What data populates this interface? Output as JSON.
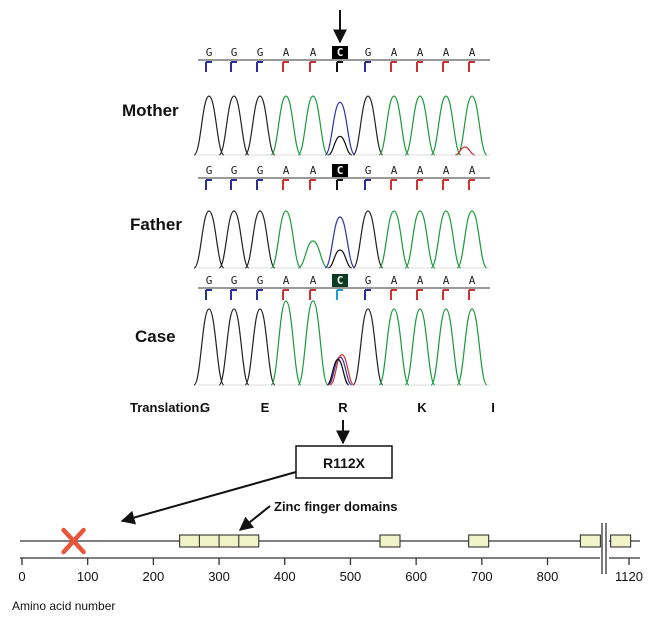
{
  "panels": [
    {
      "label": "Mother",
      "call": "C",
      "variant": "normal"
    },
    {
      "label": "Father",
      "call": "C",
      "variant": "normal"
    },
    {
      "label": "Case",
      "call": "C",
      "variant": "heterozygous"
    }
  ],
  "bases": [
    "G",
    "G",
    "G",
    "A",
    "A",
    "C",
    "G",
    "A",
    "A",
    "A",
    "A"
  ],
  "translation": {
    "label": "Translation:",
    "residues": [
      "G",
      "E",
      "R",
      "K",
      "I"
    ]
  },
  "mutation": {
    "label": "R112X",
    "position": 112
  },
  "annotation": {
    "zinc_finger_label": "Zinc finger domains"
  },
  "protein": {
    "length": 1120,
    "zinc_finger_domains": [
      {
        "start": 240,
        "end": 265
      },
      {
        "start": 270,
        "end": 295
      },
      {
        "start": 300,
        "end": 325
      },
      {
        "start": 330,
        "end": 355
      },
      {
        "start": 545,
        "end": 570
      },
      {
        "start": 680,
        "end": 705
      },
      {
        "start": 850,
        "end": 875
      },
      {
        "start": 1095,
        "end": 1115
      }
    ],
    "axis_break_between": [
      880,
      1090
    ]
  },
  "axis": {
    "ticks": [
      "0",
      "100",
      "200",
      "300",
      "400",
      "500",
      "600",
      "700",
      "800",
      "1120"
    ],
    "title": "Amino acid number"
  },
  "colors": {
    "G": "#222222",
    "A": "#1a9a3a",
    "C": "#2c2c9a",
    "T": "#d03030",
    "mutation_marker": "#e8553a",
    "domain_fill": "#f0f2c8"
  }
}
